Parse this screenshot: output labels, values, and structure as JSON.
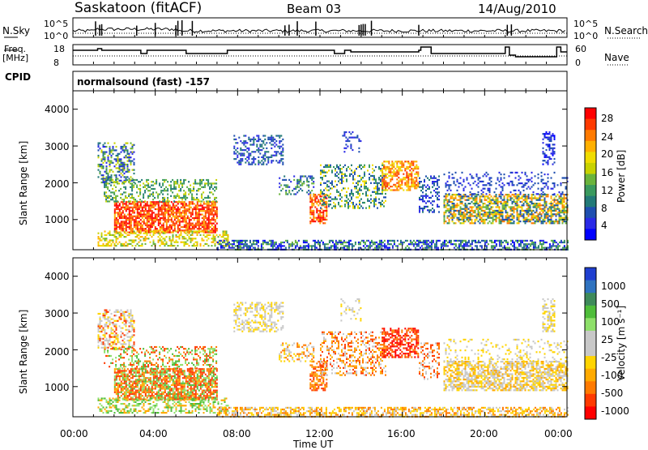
{
  "header": {
    "station": "Saskatoon (fitACF)",
    "beam": "Beam 03",
    "date": "14/Aug/2010"
  },
  "sidebar": {
    "nsky_label": "N.Sky",
    "freq_label_1": "Freq.",
    "freq_label_2": "[MHz]",
    "cpid_label": "CPID",
    "nsearch_label": "N.Search",
    "nave_label": "Nave"
  },
  "mini_panels": {
    "sky_ticks": [
      "10^5",
      "10^0"
    ],
    "search_ticks": [
      "10^5",
      "10^0"
    ],
    "freq_ticks": [
      "18",
      "8"
    ],
    "nave_ticks": [
      "60",
      "0"
    ],
    "cpid_text": "normalsound (fast) -157"
  },
  "chart_data": [
    {
      "type": "heatmap",
      "name": "power",
      "ylabel": "Slant Range [km]",
      "yticks": [
        "4000",
        "3000",
        "2000",
        "1000"
      ],
      "ylim": [
        180,
        4500
      ],
      "xlim": [
        0,
        24
      ],
      "colorbar": {
        "label": "Power [dB]",
        "ticks": [
          "28",
          "24",
          "20",
          "16",
          "12",
          "8",
          "4"
        ],
        "colors": [
          "#ff0000",
          "#ff3a00",
          "#ff7a00",
          "#ffb000",
          "#f0dc00",
          "#c8d200",
          "#6ab43c",
          "#3a9a5e",
          "#237a78",
          "#1f4fb0",
          "#2a2ae6",
          "#0000ff"
        ],
        "range": [
          0,
          32
        ]
      }
    },
    {
      "type": "heatmap",
      "name": "velocity",
      "ylabel": "Slant Range [km]",
      "yticks": [
        "4000",
        "3000",
        "2000",
        "1000"
      ],
      "ylim": [
        180,
        4500
      ],
      "xlim": [
        0,
        24
      ],
      "colorbar": {
        "label": "Velocity [m s⁻¹]",
        "ticks": [
          "1000",
          "500",
          "100",
          "25",
          "-25",
          "-100",
          "-500",
          "-1000"
        ],
        "colors": [
          "#1f3fd0",
          "#2f73c0",
          "#3e8a5a",
          "#4fbd3a",
          "#8ee06a",
          "#c8c8c8",
          "#c8c8c8",
          "#ffd400",
          "#ffaa00",
          "#ff7a00",
          "#ff3a00",
          "#ff0000"
        ]
      }
    }
  ],
  "xaxis": {
    "label": "Time UT",
    "ticks": [
      "00:00",
      "04:00",
      "08:00",
      "12:00",
      "16:00",
      "20:00",
      "00:00"
    ]
  }
}
